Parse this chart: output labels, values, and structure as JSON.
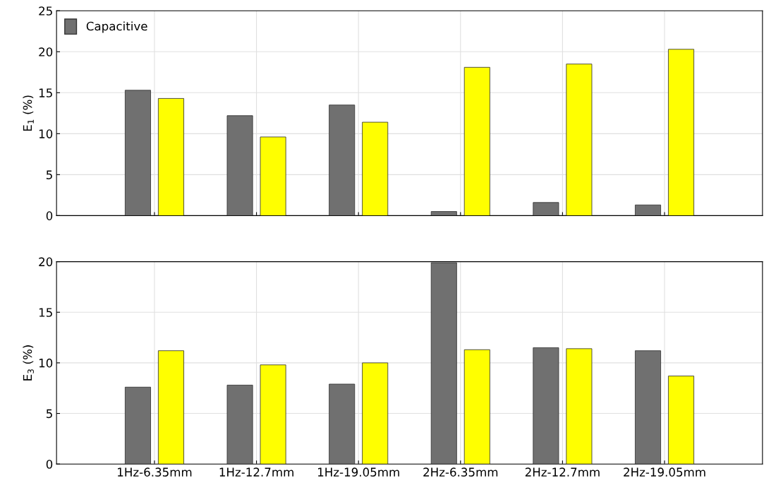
{
  "chart_data": [
    {
      "type": "bar",
      "ylabel": "E$_{1}$ (%)",
      "categories": [
        null,
        null,
        null,
        null,
        null,
        null
      ],
      "series": [
        {
          "name": "Capacitive",
          "color": "#707070",
          "values": [
            15.3,
            12.2,
            13.5,
            0.5,
            1.6,
            1.3
          ]
        },
        {
          "color": "#ffff00",
          "values": [
            14.3,
            9.6,
            11.4,
            18.1,
            18.5,
            20.3
          ]
        }
      ],
      "ylim": [
        0,
        25
      ],
      "yticks": [
        0,
        5,
        10,
        15,
        20,
        25
      ],
      "grid": true,
      "legend": "top left",
      "tick_labels": "y"
    },
    {
      "type": "bar",
      "ylabel": "E$_{3}$ (%)",
      "categories": [
        "1Hz-6.35mm",
        "1Hz-12.7mm",
        "1Hz-19.05mm",
        "2Hz-6.35mm",
        "2Hz-12.7mm",
        "2Hz-19.05mm"
      ],
      "series": [
        {
          "color": "#707070",
          "values": [
            7.6,
            7.8,
            7.9,
            19.9,
            11.5,
            11.2
          ]
        },
        {
          "color": "#ffff00",
          "values": [
            11.2,
            9.8,
            10.0,
            11.3,
            11.4,
            8.7
          ]
        }
      ],
      "ylim": [
        0,
        20
      ],
      "yticks": [
        0,
        5,
        10,
        15,
        20
      ],
      "grid": true
    }
  ]
}
